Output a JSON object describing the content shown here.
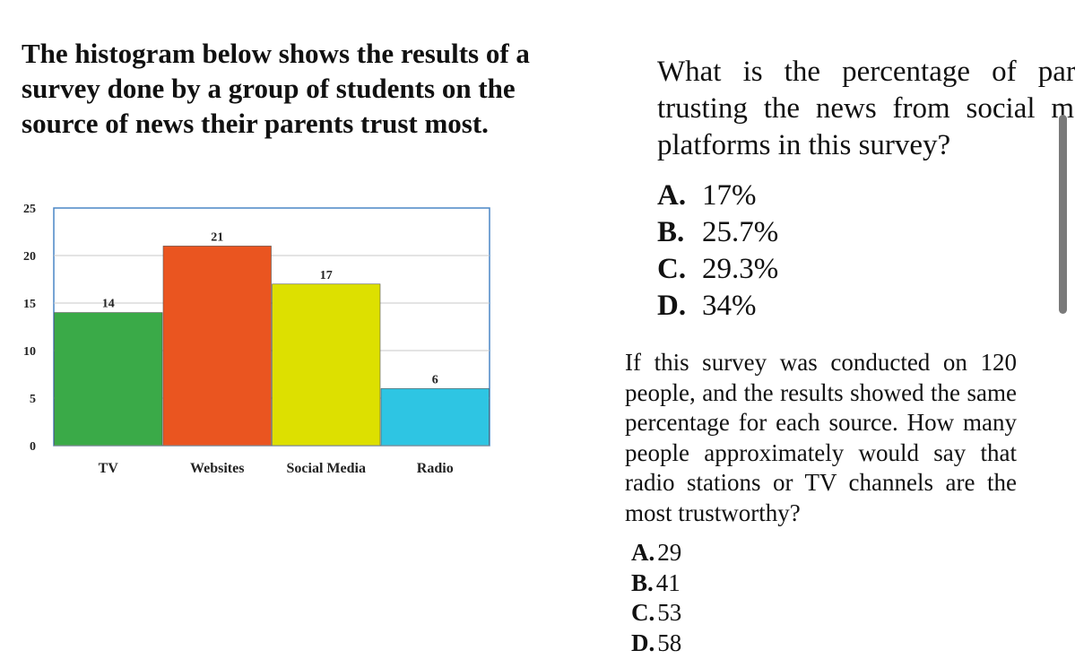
{
  "intro": "The histogram below shows the results of a survey done by a group of students on the source of news their parents trust most.",
  "question1": {
    "text": "What is the percentage of parents trusting the news from social media platforms in this survey?",
    "options": [
      {
        "letter": "A.",
        "text": "17%"
      },
      {
        "letter": "B.",
        "text": "25.7%"
      },
      {
        "letter": "C.",
        "text": "29.3%"
      },
      {
        "letter": "D.",
        "text": "34%"
      }
    ]
  },
  "question2": {
    "text": "If this survey was conducted on 120 people, and the results showed the same percentage for each source. How many people approximately would say that radio stations or TV channels are the most trustworthy?",
    "options": [
      {
        "letter": "A.",
        "text": "29"
      },
      {
        "letter": "B.",
        "text": "41"
      },
      {
        "letter": "C.",
        "text": "53"
      },
      {
        "letter": "D.",
        "text": "58"
      }
    ]
  },
  "chart_data": {
    "type": "bar",
    "categories": [
      "TV",
      "Websites",
      "Social Media",
      "Radio"
    ],
    "values": [
      14,
      21,
      17,
      6
    ],
    "colors": [
      "#3aaa48",
      "#ea5520",
      "#dde000",
      "#2ec5e3"
    ],
    "ylim": [
      0,
      25
    ],
    "yticks": [
      "0",
      "5",
      "10",
      "15",
      "20",
      "25"
    ],
    "grid": true,
    "title": "",
    "xlabel": "",
    "ylabel": ""
  }
}
